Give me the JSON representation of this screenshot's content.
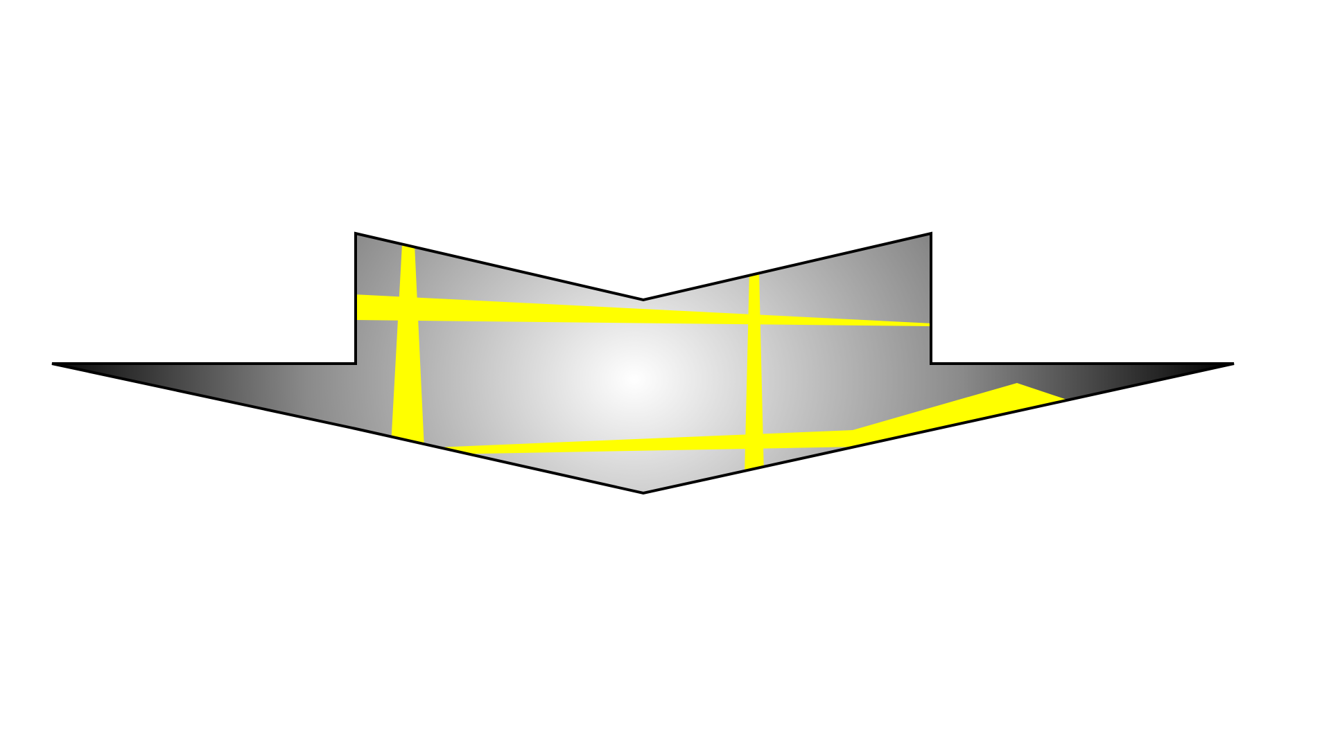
{
  "colors": {
    "background": "#ffffff",
    "outline": "#000000",
    "gradient_center": "#ffffff",
    "gradient_edge": "#000000",
    "beam": "#ffff00"
  }
}
